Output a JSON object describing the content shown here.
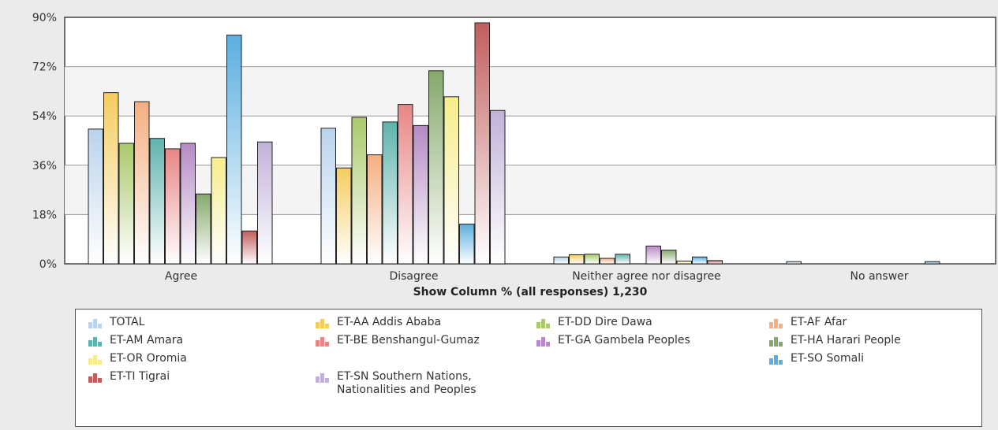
{
  "chart_data": {
    "type": "bar",
    "xlabel": "Show Column % (all responses) 1,230",
    "ylabel": "",
    "ylim": [
      0,
      90
    ],
    "yticks": [
      "0%",
      "18%",
      "36%",
      "54%",
      "72%",
      "90%"
    ],
    "grid": true,
    "legend_position": "bottom",
    "categories": [
      "Agree",
      "Disagree",
      "Neither agree nor disagree",
      "No answer"
    ],
    "series": [
      {
        "name": "TOTAL",
        "color": "#b9d3ec",
        "values": [
          49.2,
          49.5,
          2.5,
          0.8
        ]
      },
      {
        "name": "ET-AA Addis Ababa",
        "color": "#f5cc5e",
        "values": [
          62.5,
          35.0,
          3.3,
          0
        ]
      },
      {
        "name": "ET-DD Dire Dawa",
        "color": "#a9c96a",
        "values": [
          44.0,
          53.5,
          3.5,
          0
        ]
      },
      {
        "name": "ET-AF Afar",
        "color": "#f4ae80",
        "values": [
          59.2,
          39.8,
          2.0,
          0
        ]
      },
      {
        "name": "ET-AM Amara",
        "color": "#5fb3ae",
        "values": [
          45.8,
          51.8,
          3.5,
          0
        ]
      },
      {
        "name": "ET-BE Benshangul-Gumaz",
        "color": "#e88585",
        "values": [
          42.0,
          58.2,
          0,
          0
        ]
      },
      {
        "name": "ET-GA Gambela Peoples",
        "color": "#b58ac4",
        "values": [
          44.0,
          50.5,
          6.5,
          0
        ]
      },
      {
        "name": "ET-HA Harari People",
        "color": "#86a86c",
        "values": [
          25.5,
          70.5,
          5.0,
          0
        ]
      },
      {
        "name": "ET-OR Oromia",
        "color": "#f6ed8a",
        "values": [
          38.8,
          61.0,
          1.0,
          0
        ]
      },
      {
        "name": "ET-SO Somali",
        "color": "#5aaee0",
        "values": [
          83.5,
          14.5,
          2.5,
          0.8
        ]
      },
      {
        "name": "ET-TI Tigrai",
        "color": "#c15d5d",
        "values": [
          12.0,
          88.0,
          1.2,
          0
        ]
      },
      {
        "name": "ET-SN Southern Nations, Nationalities and Peoples",
        "color": "#c0b2d8",
        "values": [
          44.5,
          56.0,
          0,
          0
        ]
      }
    ]
  },
  "legend": [
    {
      "label": "TOTAL",
      "color": "#b9d3ec"
    },
    {
      "label": "ET-AA Addis Ababa",
      "color": "#f5cc5e"
    },
    {
      "label": "ET-DD Dire Dawa",
      "color": "#a9c96a"
    },
    {
      "label": "ET-AF Afar",
      "color": "#f4ae80"
    },
    {
      "label": "ET-AM Amara",
      "color": "#5fb3ae"
    },
    {
      "label": "ET-BE Benshangul-Gumaz",
      "color": "#e88585"
    },
    {
      "label": "ET-GA Gambela Peoples",
      "color": "#b58ac4"
    },
    {
      "label": "ET-HA Harari People",
      "color": "#86a86c"
    },
    {
      "label": "ET-OR Oromia",
      "color": "#f6ed8a"
    },
    {
      "label": "ET-SO Somali",
      "color": "#5aaee0"
    },
    {
      "label": "ET-TI Tigrai",
      "color": "#c15d5d"
    },
    {
      "label": "ET-SN Southern Nations, Nationalities and Peoples",
      "color": "#c0b2d8"
    }
  ]
}
